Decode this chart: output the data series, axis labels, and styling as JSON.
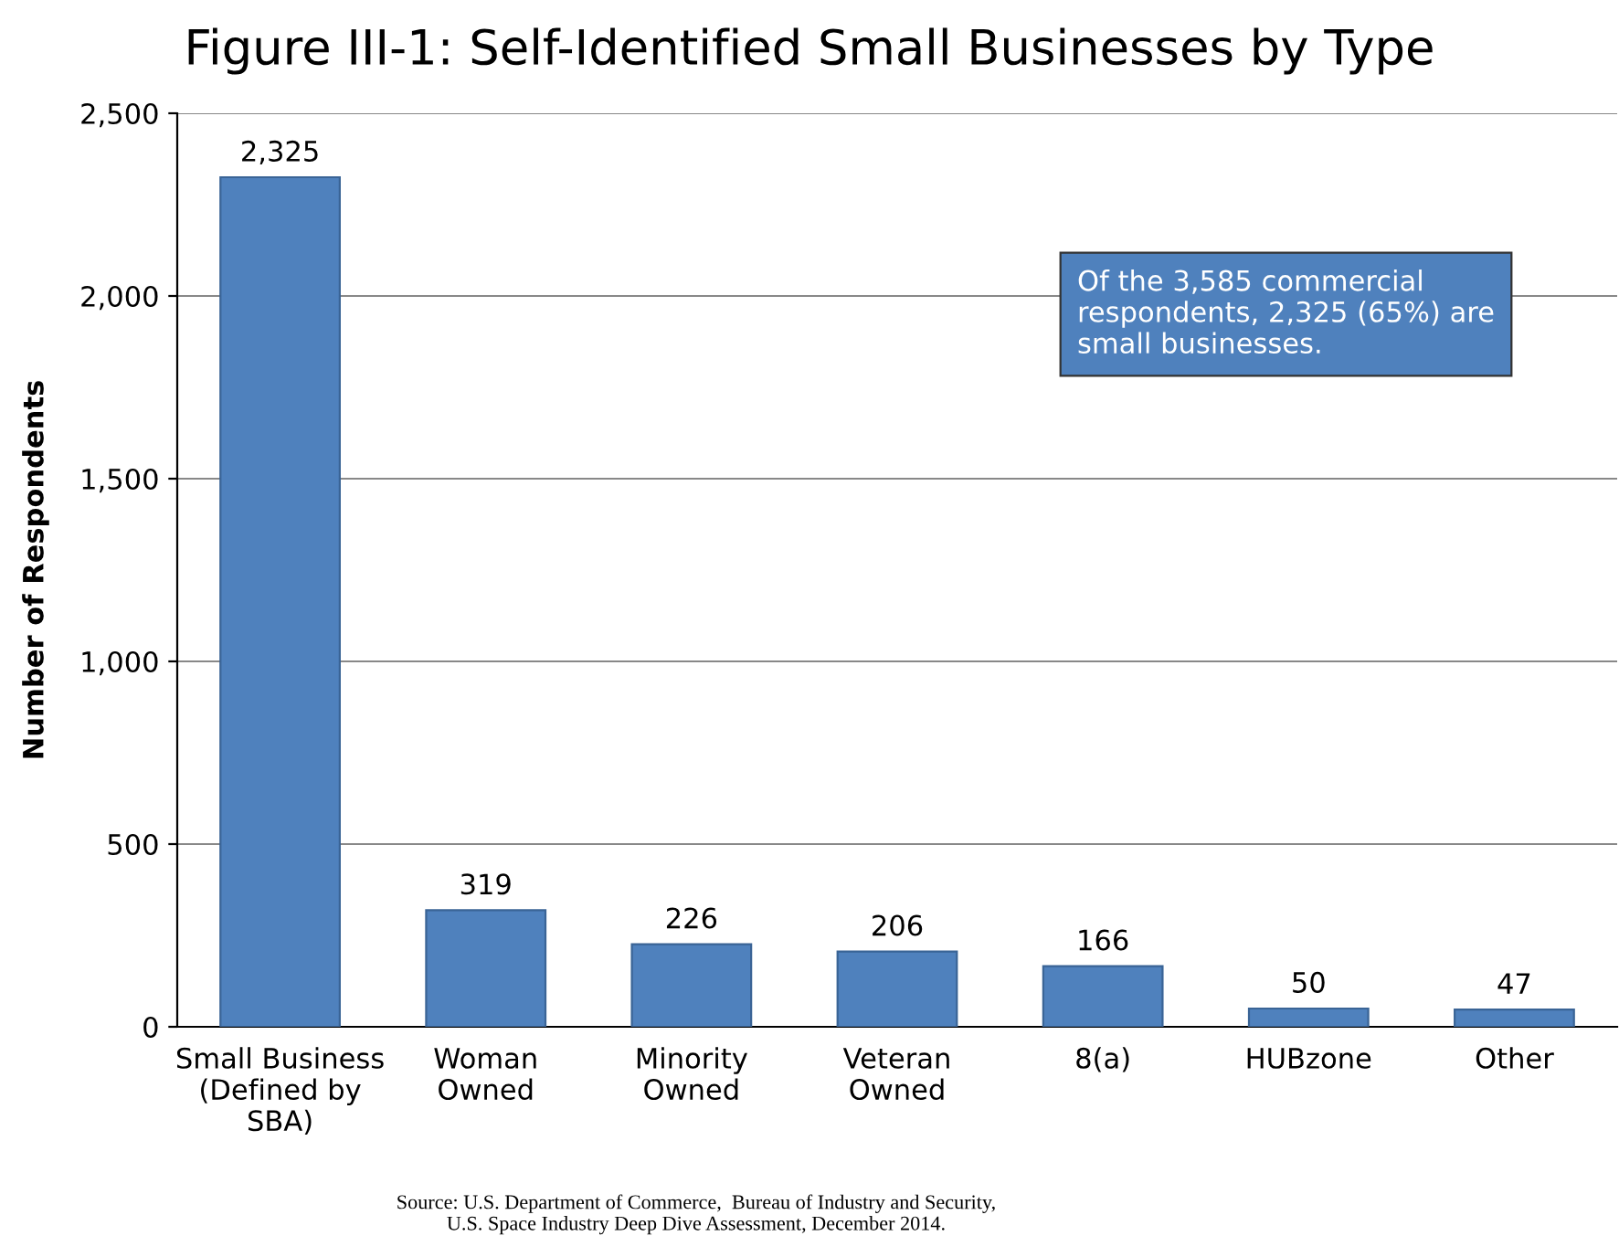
{
  "chart_data": {
    "type": "bar",
    "title": "Figure III-1: Self-Identified Small Businesses by Type",
    "ylabel": "Number of Respondents",
    "categories": [
      "Small Business\n(Defined by\nSBA)",
      "Woman\nOwned",
      "Minority\nOwned",
      "Veteran\nOwned",
      "8(a)",
      "HUBzone",
      "Other"
    ],
    "values": [
      2325,
      319,
      226,
      206,
      166,
      50,
      47
    ],
    "color": "#4f81bd",
    "ylim": [
      0,
      2500
    ],
    "yticks": [
      {
        "value": 0,
        "label": "0"
      },
      {
        "value": 500,
        "label": "500"
      },
      {
        "value": 1000,
        "label": "1,000"
      },
      {
        "value": 1500,
        "label": "1,500"
      },
      {
        "value": 2000,
        "label": "2,000"
      },
      {
        "value": 2500,
        "label": "2,500"
      }
    ],
    "grid": "y",
    "value_labels": [
      "2,325",
      "319",
      "226",
      "206",
      "166",
      "50",
      "47"
    ],
    "annotations": [
      "Of the 3,585 commercial\nrespondents, 2,325 (65%) are\nsmall businesses.",
      "Source: U.S. Department of Commerce,  Bureau of Industry and Security,\nU.S. Space Industry Deep Dive Assessment, December 2014."
    ]
  }
}
